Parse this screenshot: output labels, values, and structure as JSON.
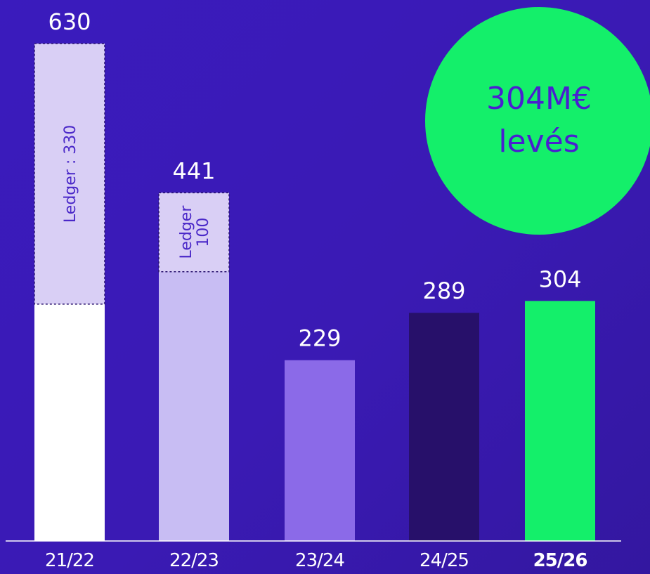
{
  "chart_data": {
    "type": "bar",
    "categories": [
      "21/22",
      "22/23",
      "23/24",
      "24/25",
      "25/26"
    ],
    "values": [
      630,
      441,
      229,
      289,
      304
    ],
    "segments": [
      {
        "category": "21/22",
        "label": "Ledger : 330",
        "value": 330
      },
      {
        "category": "22/23",
        "label_lines": [
          "Ledger",
          "100"
        ],
        "value": 100
      }
    ],
    "highlighted_category": "25/26",
    "xlabel": "",
    "ylabel": "",
    "grid": false
  },
  "badge": {
    "line1": "304M€",
    "line2": "levés"
  },
  "colors": {
    "background": "#3a1bbd",
    "bar_21_22": "#ffffff",
    "bar_22_23": "#c8bdf3",
    "bar_23_24": "#8b6ae8",
    "bar_24_25": "#27106a",
    "bar_25_26": "#14ef6a",
    "ledger_segment": "#d9cff5",
    "badge": "#14ef6a",
    "badge_text": "#4a1fd0",
    "text": "#ffffff"
  }
}
